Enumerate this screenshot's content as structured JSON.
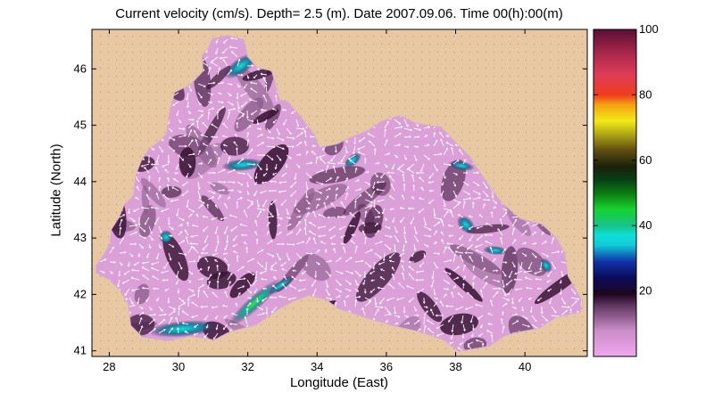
{
  "title": "Current velocity (cm/s). Depth=  2.5 (m). Date 2007.09.06. Time 00(h):00(m)",
  "xlabel": "Longitude (East)",
  "ylabel": "Latitude (North)",
  "colors": {
    "land": "#e8c8a3",
    "sea_low": "#e7a7e4",
    "sea_mid": "#a56aa8",
    "sea_high": "#3b1738",
    "arrow": "#ffffff"
  },
  "chart_data": {
    "type": "heatmap",
    "x_ticks": [
      28,
      30,
      32,
      34,
      36,
      38,
      40
    ],
    "y_ticks": [
      41,
      42,
      43,
      44,
      45,
      46
    ],
    "xlim": [
      27.5,
      41.8
    ],
    "ylim": [
      40.9,
      46.7
    ],
    "colorbar": {
      "ticks": [
        20,
        40,
        60,
        80,
        100
      ],
      "range": [
        0,
        100
      ],
      "unit": "cm/s"
    },
    "grid": true,
    "notes": "Black Sea surface current field; vectors shown as white arrows over speed shading"
  }
}
